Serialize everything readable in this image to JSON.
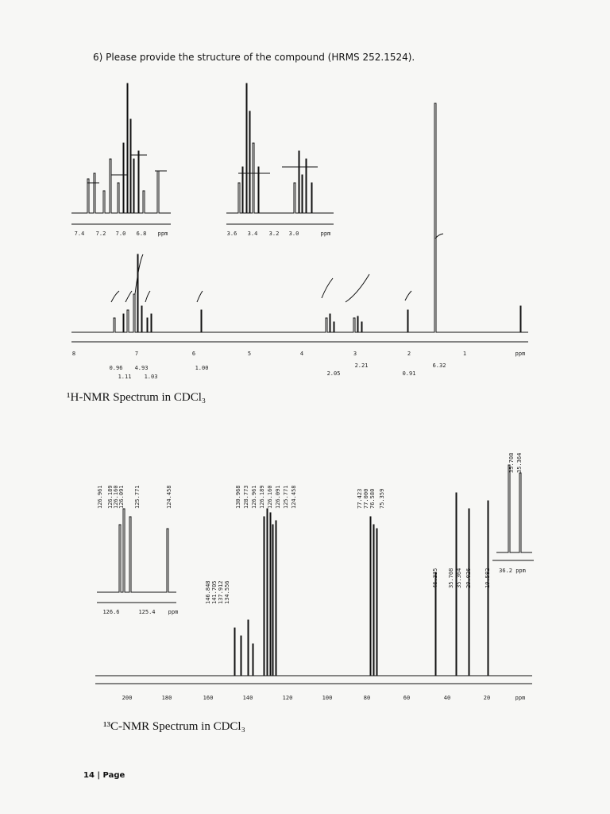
{
  "question": "6) Please provide the structure of the compound (HRMS 252.1524).",
  "h_nmr": {
    "inset_left_axis": [
      "7.4",
      "7.2",
      "7.0",
      "6.8",
      "ppm"
    ],
    "inset_right_axis": [
      "3.6",
      "3.4",
      "3.2",
      "3.0",
      "ppm"
    ],
    "axis": [
      "8",
      "7",
      "6",
      "5",
      "4",
      "3",
      "2",
      "1",
      "ppm"
    ],
    "integrals": [
      "0.96",
      "4.93",
      "1.11",
      "1.03",
      "1.00",
      "2.05",
      "2.21",
      "0.91",
      "6.32"
    ],
    "caption": "¹H-NMR Spectrum in CDCl₃"
  },
  "c_nmr": {
    "inset_left_peaks": [
      "126.961",
      "126.189",
      "126.160",
      "126.091",
      "125.771",
      "124.458"
    ],
    "inset_left_axis": [
      "126.6",
      "125.4",
      "ppm"
    ],
    "peaks_aromatic_low": [
      "146.848",
      "141.705",
      "137.912",
      "134.556"
    ],
    "peaks_aromatic_high": [
      "130.968",
      "128.773",
      "126.961",
      "126.189",
      "126.160",
      "126.091",
      "125.771",
      "124.458"
    ],
    "peaks_solvent": [
      "77.423",
      "77.000",
      "76.580",
      "75.359"
    ],
    "peaks_aliphatic": [
      "46.335",
      "35.708",
      "35.364",
      "29.026",
      "19.582"
    ],
    "inset_right_peaks": [
      "35.708",
      "35.364"
    ],
    "inset_right_axis": "36.2 ppm",
    "axis": [
      "200",
      "180",
      "160",
      "140",
      "120",
      "100",
      "80",
      "60",
      "40",
      "20",
      "ppm"
    ],
    "caption": "¹³C-NMR Spectrum in CDCl₃"
  },
  "footer": "14 | Page"
}
